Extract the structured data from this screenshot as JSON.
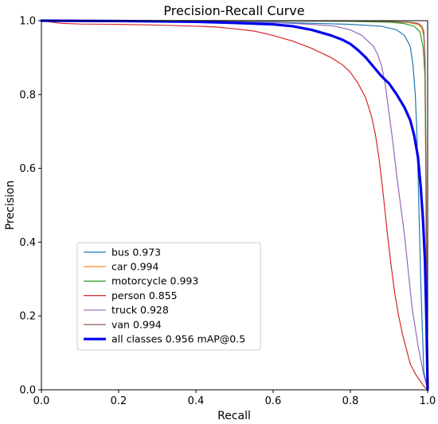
{
  "chart_data": {
    "type": "line",
    "title": "Precision-Recall Curve",
    "xlabel": "Recall",
    "ylabel": "Precision",
    "xlim": [
      0,
      1
    ],
    "ylim": [
      0,
      1
    ],
    "x_ticks": [
      "0.0",
      "0.2",
      "0.4",
      "0.6",
      "0.8",
      "1.0"
    ],
    "y_ticks": [
      "0.0",
      "0.2",
      "0.4",
      "0.6",
      "0.8",
      "1.0"
    ],
    "grid": false,
    "legend_position": "lower-left",
    "series": [
      {
        "name": "bus 0.973",
        "color": "#1f77b4",
        "width": 1.2,
        "x": [
          0,
          0.3,
          0.6,
          0.8,
          0.88,
          0.92,
          0.94,
          0.955,
          0.962,
          0.968,
          0.972,
          0.976,
          0.982,
          0.99,
          1.0
        ],
        "y": [
          1.0,
          0.998,
          0.996,
          0.99,
          0.985,
          0.975,
          0.96,
          0.93,
          0.88,
          0.8,
          0.7,
          0.55,
          0.3,
          0.05,
          0.0
        ]
      },
      {
        "name": "car 0.994",
        "color": "#ff7f0e",
        "width": 1.2,
        "x": [
          0,
          0.5,
          0.8,
          0.9,
          0.95,
          0.975,
          0.985,
          0.99,
          0.993,
          0.995,
          0.997,
          1.0
        ],
        "y": [
          1.0,
          1.0,
          0.999,
          0.998,
          0.995,
          0.99,
          0.98,
          0.96,
          0.9,
          0.6,
          0.2,
          0.0
        ]
      },
      {
        "name": "motorcycle 0.993",
        "color": "#2ca02c",
        "width": 1.2,
        "x": [
          0,
          0.5,
          0.8,
          0.9,
          0.94,
          0.965,
          0.98,
          0.988,
          0.993,
          0.996,
          0.998,
          1.0
        ],
        "y": [
          1.0,
          1.0,
          0.998,
          0.996,
          0.992,
          0.985,
          0.97,
          0.93,
          0.85,
          0.55,
          0.2,
          0.0
        ]
      },
      {
        "name": "person 0.855",
        "color": "#d62728",
        "width": 1.2,
        "x": [
          0,
          0.05,
          0.1,
          0.2,
          0.3,
          0.4,
          0.45,
          0.5,
          0.55,
          0.6,
          0.65,
          0.7,
          0.75,
          0.78,
          0.8,
          0.82,
          0.84,
          0.855,
          0.865,
          0.875,
          0.885,
          0.895,
          0.905,
          0.915,
          0.925,
          0.935,
          0.945,
          0.955,
          0.97,
          0.99,
          1.0
        ],
        "y": [
          1.0,
          0.993,
          0.991,
          0.99,
          0.988,
          0.985,
          0.983,
          0.978,
          0.972,
          0.96,
          0.945,
          0.925,
          0.9,
          0.88,
          0.86,
          0.83,
          0.79,
          0.74,
          0.69,
          0.62,
          0.53,
          0.43,
          0.34,
          0.26,
          0.2,
          0.15,
          0.11,
          0.07,
          0.04,
          0.01,
          0.0
        ]
      },
      {
        "name": "truck 0.928",
        "color": "#9467bd",
        "width": 1.2,
        "x": [
          0,
          0.3,
          0.6,
          0.7,
          0.76,
          0.8,
          0.83,
          0.86,
          0.87,
          0.88,
          0.89,
          0.9,
          0.91,
          0.92,
          0.93,
          0.94,
          0.95,
          0.96,
          0.975,
          0.99,
          1.0
        ],
        "y": [
          1.0,
          0.998,
          0.995,
          0.99,
          0.985,
          0.975,
          0.96,
          0.93,
          0.91,
          0.88,
          0.83,
          0.75,
          0.67,
          0.58,
          0.5,
          0.42,
          0.32,
          0.22,
          0.12,
          0.04,
          0.0
        ]
      },
      {
        "name": "van 0.994",
        "color": "#8c564b",
        "width": 1.2,
        "x": [
          0,
          0.5,
          0.8,
          0.9,
          0.95,
          0.975,
          0.985,
          0.99,
          0.993,
          0.996,
          0.998,
          1.0
        ],
        "y": [
          1.0,
          1.0,
          0.999,
          0.998,
          0.996,
          0.993,
          0.985,
          0.97,
          0.9,
          0.6,
          0.2,
          0.0
        ]
      },
      {
        "name": "all classes 0.956 mAP@0.5",
        "color": "#0000ee",
        "width": 3.2,
        "x": [
          0,
          0.2,
          0.4,
          0.5,
          0.6,
          0.65,
          0.7,
          0.75,
          0.78,
          0.8,
          0.82,
          0.84,
          0.86,
          0.88,
          0.9,
          0.92,
          0.94,
          0.955,
          0.965,
          0.975,
          0.982,
          0.988,
          0.993,
          0.997,
          1.0
        ],
        "y": [
          1.0,
          0.999,
          0.997,
          0.994,
          0.99,
          0.985,
          0.975,
          0.96,
          0.948,
          0.937,
          0.92,
          0.9,
          0.875,
          0.85,
          0.83,
          0.8,
          0.765,
          0.73,
          0.69,
          0.63,
          0.55,
          0.46,
          0.35,
          0.18,
          0.0
        ]
      }
    ]
  }
}
